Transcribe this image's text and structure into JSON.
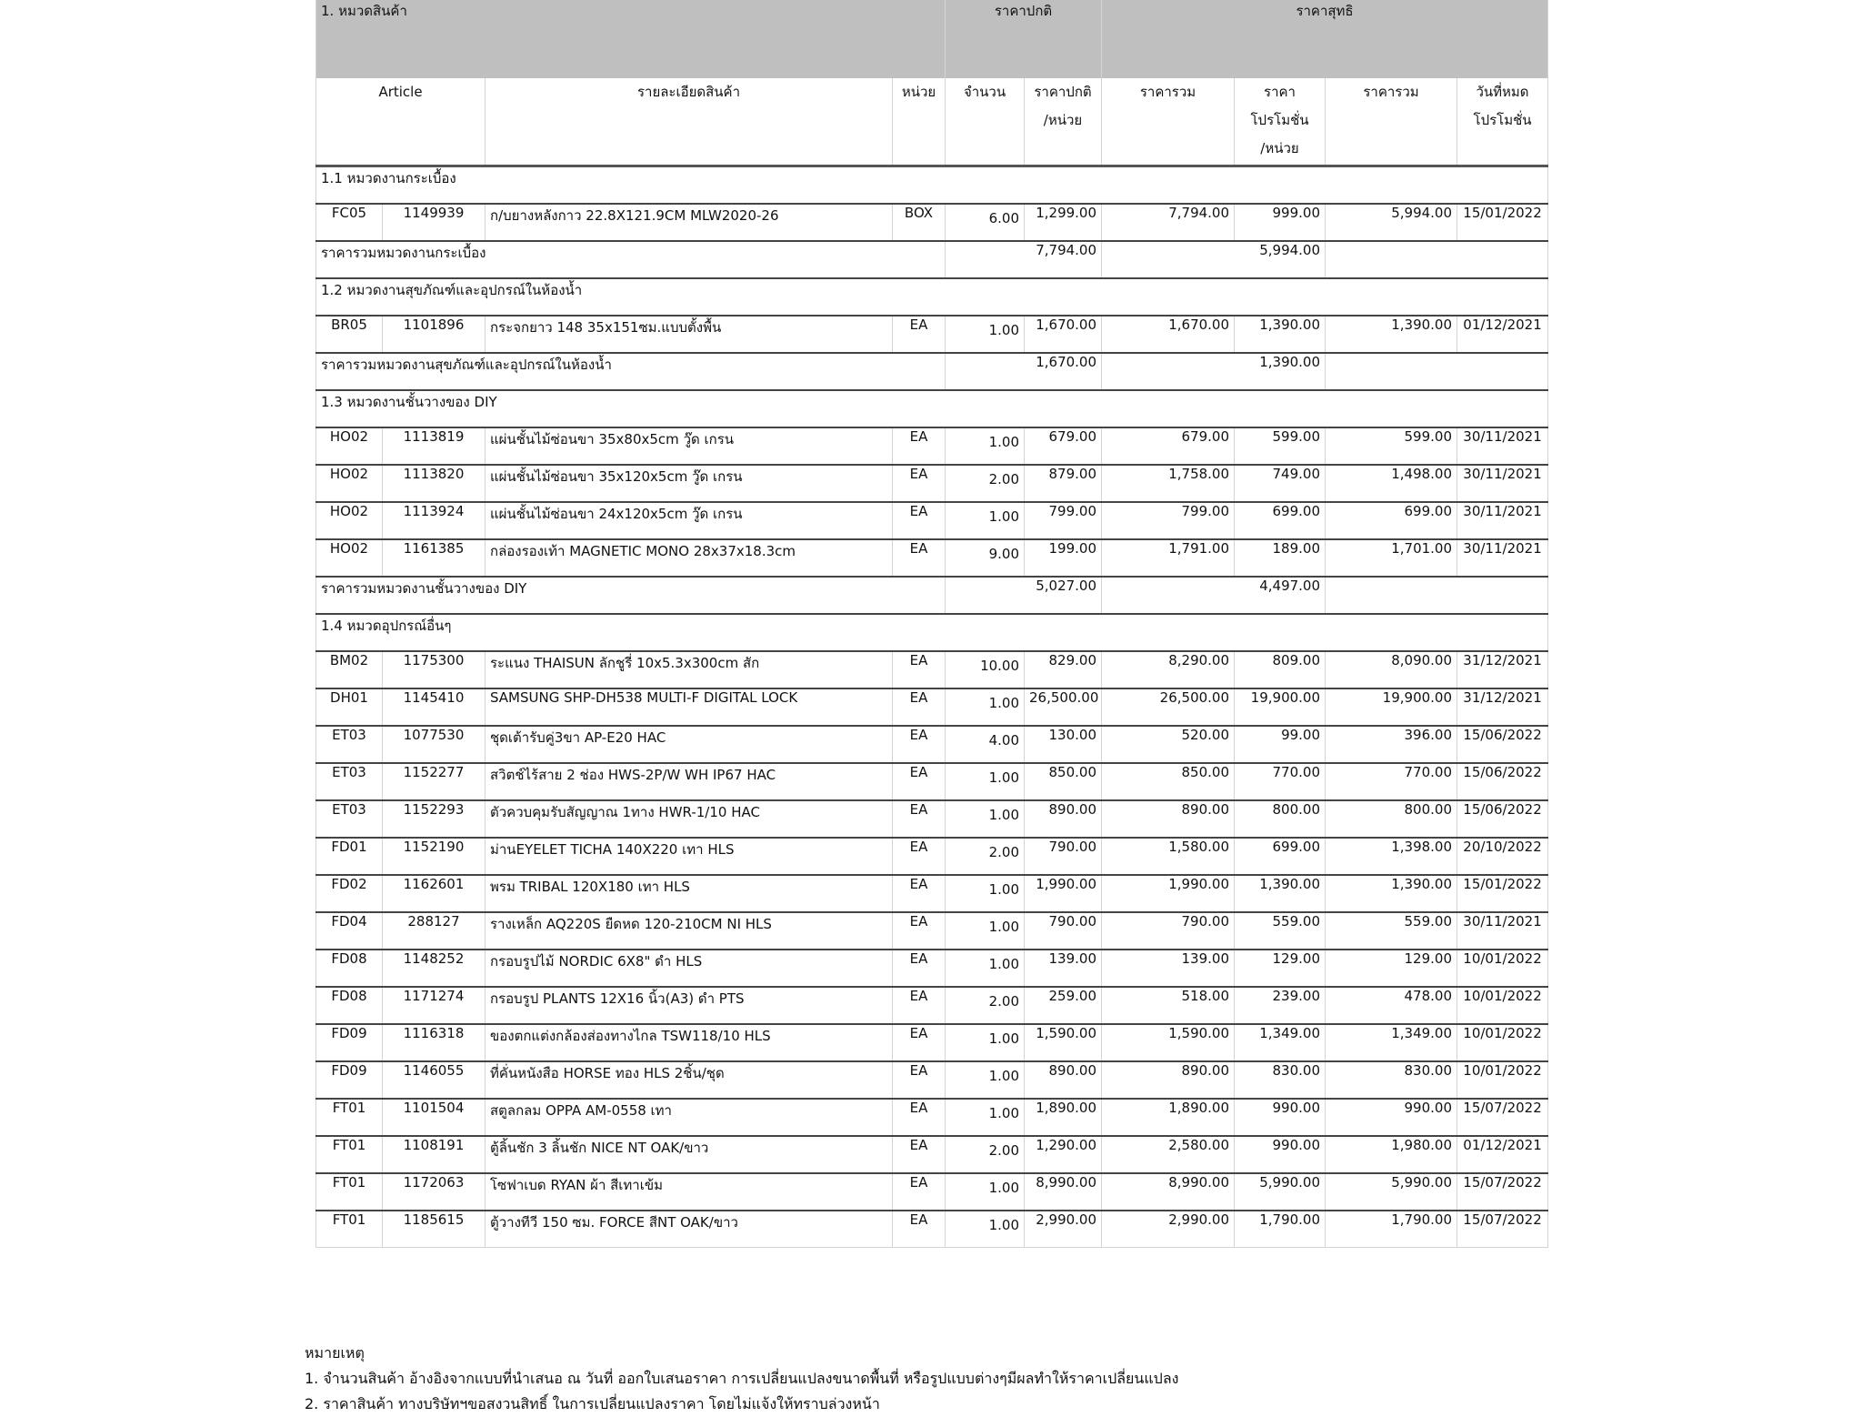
{
  "header": {
    "category_title": "1. หมวดสินค้า",
    "regular_price_group": "ราคาปกติ",
    "net_price_group": "ราคาสุทธิ",
    "columns": {
      "article": "Article",
      "description": "รายละเอียดสินค้า",
      "unit": "หน่วย",
      "qty": "จำนวน",
      "unit_price_1": "ราคาปกติ",
      "unit_price_2": "/หน่วย",
      "total": "ราคารวม",
      "promo_price_1": "ราคา",
      "promo_price_2": "โปรโมชั่น",
      "promo_price_3": "/หน่วย",
      "net_total": "ราคารวม",
      "promo_end_1": "วันที่หมด",
      "promo_end_2": "โปรโมชั่น"
    }
  },
  "sections": [
    {
      "title": "1.1 หมวดงานกระเบื้อง",
      "items": [
        {
          "code": "FC05",
          "article": "1149939",
          "desc": "ก/บยางหลังกาว  22.8X121.9CM  MLW2020-26",
          "unit": "BOX",
          "qty": "6.00",
          "price": "1,299.00",
          "total": "7,794.00",
          "promo": "999.00",
          "net": "5,994.00",
          "end": "15/01/2022"
        }
      ],
      "subtotal_label": "ราคารวมหมวดงานกระเบื้อง",
      "subtotal": "7,794.00",
      "subtotal_net": "5,994.00"
    },
    {
      "title": "1.2 หมวดงานสุขภัณฑ์และอุปกรณ์ในห้องน้ำ",
      "items": [
        {
          "code": "BR05",
          "article": "1101896",
          "desc": "กระจกยาว 148 35x151ซม.แบบตั้งพื้น",
          "unit": "EA",
          "qty": "1.00",
          "price": "1,670.00",
          "total": "1,670.00",
          "promo": "1,390.00",
          "net": "1,390.00",
          "end": "01/12/2021"
        }
      ],
      "subtotal_label": "ราคารวมหมวดงานสุขภัณฑ์และอุปกรณ์ในห้องน้ำ",
      "subtotal": "1,670.00",
      "subtotal_net": "1,390.00"
    },
    {
      "title": "1.3 หมวดงานชั้นวางของ DIY",
      "items": [
        {
          "code": "HO02",
          "article": "1113819",
          "desc": "แผ่นชั้นไม้ซ่อนขา 35x80x5cm วู๊ด เกรน",
          "unit": "EA",
          "qty": "1.00",
          "price": "679.00",
          "total": "679.00",
          "promo": "599.00",
          "net": "599.00",
          "end": "30/11/2021"
        },
        {
          "code": "HO02",
          "article": "1113820",
          "desc": "แผ่นชั้นไม้ซ่อนขา 35x120x5cm วู๊ด เกรน",
          "unit": "EA",
          "qty": "2.00",
          "price": "879.00",
          "total": "1,758.00",
          "promo": "749.00",
          "net": "1,498.00",
          "end": "30/11/2021"
        },
        {
          "code": "HO02",
          "article": "1113924",
          "desc": "แผ่นชั้นไม้ซ่อนขา 24x120x5cm วู๊ด เกรน",
          "unit": "EA",
          "qty": "1.00",
          "price": "799.00",
          "total": "799.00",
          "promo": "699.00",
          "net": "699.00",
          "end": "30/11/2021"
        },
        {
          "code": "HO02",
          "article": "1161385",
          "desc": "กล่องรองเท้า MAGNETIC MONO 28x37x18.3cm",
          "unit": "EA",
          "qty": "9.00",
          "price": "199.00",
          "total": "1,791.00",
          "promo": "189.00",
          "net": "1,701.00",
          "end": "30/11/2021"
        }
      ],
      "subtotal_label": "ราคารวมหมวดงานชั้นวางของ DIY",
      "subtotal": "5,027.00",
      "subtotal_net": "4,497.00"
    },
    {
      "title": "1.4 หมวดอุปกรณ์อื่นๆ",
      "items": [
        {
          "code": "BM02",
          "article": "1175300",
          "desc": "ระแนง THAISUN ลักชูรี่ 10x5.3x300cm สัก",
          "unit": "EA",
          "qty": "10.00",
          "price": "829.00",
          "total": "8,290.00",
          "promo": "809.00",
          "net": "8,090.00",
          "end": "31/12/2021"
        },
        {
          "code": "DH01",
          "article": "1145410",
          "desc": "SAMSUNG SHP-DH538 MULTI-F DIGITAL LOCK",
          "unit": "EA",
          "qty": "1.00",
          "price": "26,500.00",
          "total": "26,500.00",
          "promo": "19,900.00",
          "net": "19,900.00",
          "end": "31/12/2021"
        },
        {
          "code": "ET03",
          "article": "1077530",
          "desc": "ชุดเต้ารับคู่3ขา AP-E20 HAC",
          "unit": "EA",
          "qty": "4.00",
          "price": "130.00",
          "total": "520.00",
          "promo": "99.00",
          "net": "396.00",
          "end": "15/06/2022"
        },
        {
          "code": "ET03",
          "article": "1152277",
          "desc": "สวิตช์ไร้สาย 2 ช่อง HWS-2P/W WH IP67 HAC",
          "unit": "EA",
          "qty": "1.00",
          "price": "850.00",
          "total": "850.00",
          "promo": "770.00",
          "net": "770.00",
          "end": "15/06/2022"
        },
        {
          "code": "ET03",
          "article": "1152293",
          "desc": "ตัวควบคุมรับสัญญาณ 1ทาง HWR-1/10 HAC",
          "unit": "EA",
          "qty": "1.00",
          "price": "890.00",
          "total": "890.00",
          "promo": "800.00",
          "net": "800.00",
          "end": "15/06/2022"
        },
        {
          "code": "FD01",
          "article": "1152190",
          "desc": "ม่านEYELET TICHA 140X220 เทา HLS",
          "unit": "EA",
          "qty": "2.00",
          "price": "790.00",
          "total": "1,580.00",
          "promo": "699.00",
          "net": "1,398.00",
          "end": "20/10/2022"
        },
        {
          "code": "FD02",
          "article": "1162601",
          "desc": "พรม TRIBAL 120X180 เทา HLS",
          "unit": "EA",
          "qty": "1.00",
          "price": "1,990.00",
          "total": "1,990.00",
          "promo": "1,390.00",
          "net": "1,390.00",
          "end": "15/01/2022"
        },
        {
          "code": "FD04",
          "article": "288127",
          "desc": "รางเหล็ก AQ220S ยืดหด 120-210CM NI HLS",
          "unit": "EA",
          "qty": "1.00",
          "price": "790.00",
          "total": "790.00",
          "promo": "559.00",
          "net": "559.00",
          "end": "30/11/2021"
        },
        {
          "code": "FD08",
          "article": "1148252",
          "desc": "กรอบรูปไม้ NORDIC 6X8\" ดำ HLS",
          "unit": "EA",
          "qty": "1.00",
          "price": "139.00",
          "total": "139.00",
          "promo": "129.00",
          "net": "129.00",
          "end": "10/01/2022"
        },
        {
          "code": "FD08",
          "article": "1171274",
          "desc": "กรอบรูป PLANTS 12X16 นิ้ว(A3) ดำ PTS",
          "unit": "EA",
          "qty": "2.00",
          "price": "259.00",
          "total": "518.00",
          "promo": "239.00",
          "net": "478.00",
          "end": "10/01/2022"
        },
        {
          "code": "FD09",
          "article": "1116318",
          "desc": "ของตกแต่งกล้องส่องทางไกล TSW118/10 HLS",
          "unit": "EA",
          "qty": "1.00",
          "price": "1,590.00",
          "total": "1,590.00",
          "promo": "1,349.00",
          "net": "1,349.00",
          "end": "10/01/2022"
        },
        {
          "code": "FD09",
          "article": "1146055",
          "desc": "ที่คั่นหนังสือ HORSE ทอง HLS 2ชิ้น/ชุด",
          "unit": "EA",
          "qty": "1.00",
          "price": "890.00",
          "total": "890.00",
          "promo": "830.00",
          "net": "830.00",
          "end": "10/01/2022"
        },
        {
          "code": "FT01",
          "article": "1101504",
          "desc": "สตูลกลม OPPA AM-0558 เทา",
          "unit": "EA",
          "qty": "1.00",
          "price": "1,890.00",
          "total": "1,890.00",
          "promo": "990.00",
          "net": "990.00",
          "end": "15/07/2022"
        },
        {
          "code": "FT01",
          "article": "1108191",
          "desc": "ตู้ลิ้นชัก 3 ลิ้นชัก NICE NT OAK/ขาว",
          "unit": "EA",
          "qty": "2.00",
          "price": "1,290.00",
          "total": "2,580.00",
          "promo": "990.00",
          "net": "1,980.00",
          "end": "01/12/2021"
        },
        {
          "code": "FT01",
          "article": "1172063",
          "desc": "โซฟาเบด RYAN ผ้า สีเทาเข้ม",
          "unit": "EA",
          "qty": "1.00",
          "price": "8,990.00",
          "total": "8,990.00",
          "promo": "5,990.00",
          "net": "5,990.00",
          "end": "15/07/2022"
        },
        {
          "code": "FT01",
          "article": "1185615",
          "desc": "ตู้วางทีวี 150 ซม. FORCE สีNT OAK/ขาว",
          "unit": "EA",
          "qty": "1.00",
          "price": "2,990.00",
          "total": "2,990.00",
          "promo": "1,790.00",
          "net": "1,790.00",
          "end": "15/07/2022"
        }
      ]
    }
  ],
  "notes": {
    "title": "หมายเหตุ",
    "lines": [
      "1. จำนวนสินค้า อ้างอิงจากแบบที่นำเสนอ ณ วันที่ ออกใบเสนอราคา การเปลี่ยนแปลงขนาดพื้นที่ หรือรูปแบบต่างๆมีผลทำให้ราคาเปลี่ยนแปลง",
      "2. ราคาสินค้า ทางบริษัทฯขอสงวนสิทธิ์ ในการเปลี่ยนแปลงราคา โดยไม่แจ้งให้ทราบล่วงหน้า"
    ]
  }
}
